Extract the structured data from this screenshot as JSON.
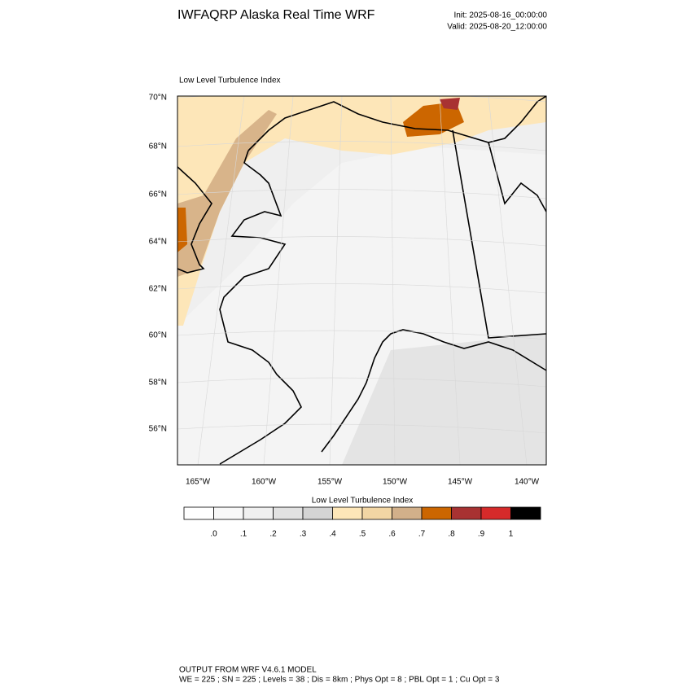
{
  "header": {
    "title": "IWFAQRP Alaska Real Time WRF",
    "init": "Init: 2025-08-16_00:00:00",
    "valid": "Valid: 2025-08-20_12:00:00"
  },
  "map": {
    "title": "Low Level Turbulence Index",
    "lat_labels": [
      "70°N",
      "68°N",
      "66°N",
      "64°N",
      "62°N",
      "60°N",
      "58°N",
      "56°N"
    ],
    "lon_labels": [
      "165°W",
      "160°W",
      "155°W",
      "150°W",
      "145°W",
      "140°W"
    ]
  },
  "colorbar": {
    "title": "Low Level Turbulence Index",
    "labels": [
      ".0",
      ".1",
      ".2",
      ".3",
      ".4",
      ".5",
      ".6",
      ".7",
      ".8",
      ".9",
      "1"
    ]
  },
  "footer": {
    "line1": "OUTPUT FROM WRF V4.6.1 MODEL",
    "line2": "WE = 225 ; SN = 225 ; Levels = 38 ; Dis = 8km ; Phys Opt = 8 ; PBL Opt = 1 ; Cu Opt = 3"
  }
}
